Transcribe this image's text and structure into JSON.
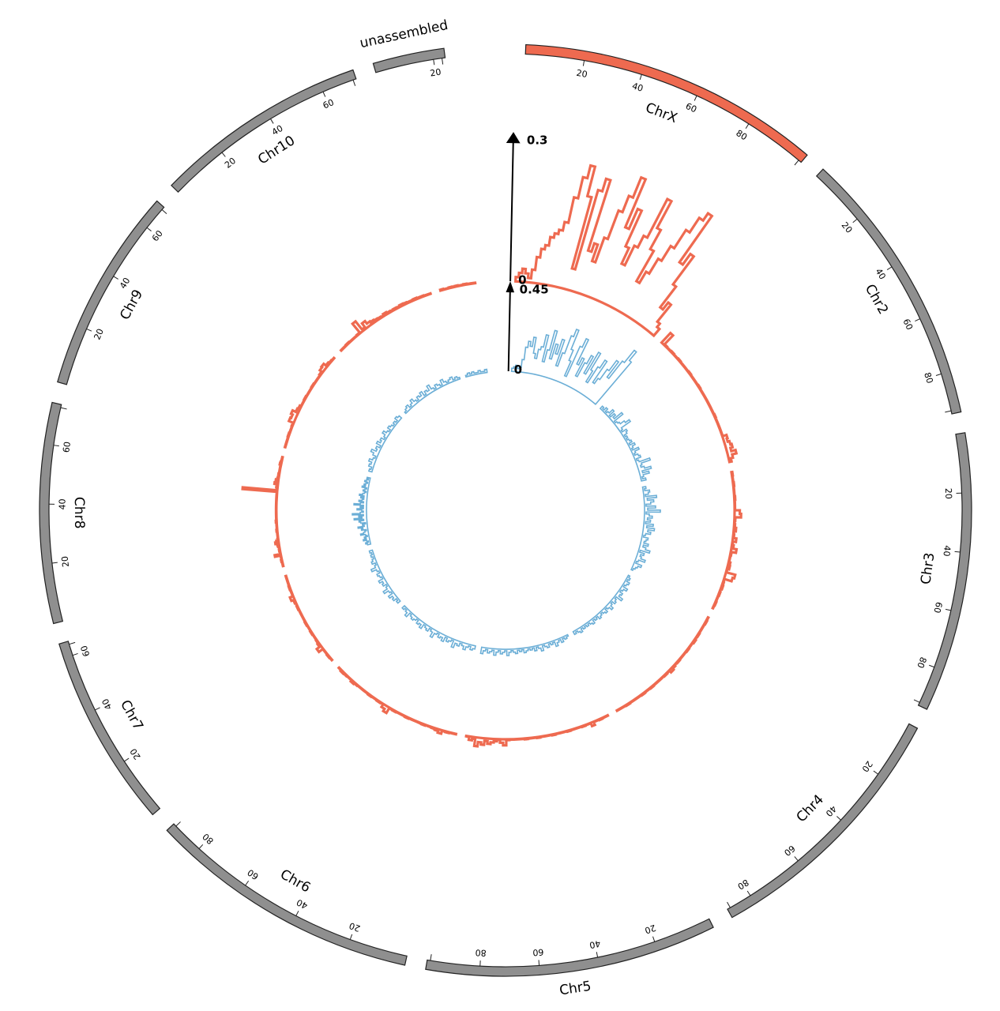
{
  "chart_data": {
    "type": "circos-histogram",
    "chromosomes": [
      {
        "name": "ChrX",
        "length": 102,
        "color": "#ee6a50",
        "ticks": [
          20,
          40,
          60,
          80
        ]
      },
      {
        "name": "Chr2",
        "length": 94,
        "color": "#8f8f8f",
        "ticks": [
          20,
          40,
          60,
          80
        ]
      },
      {
        "name": "Chr3",
        "length": 94,
        "color": "#8f8f8f",
        "ticks": [
          20,
          40,
          60,
          80
        ]
      },
      {
        "name": "Chr4",
        "length": 89,
        "color": "#8f8f8f",
        "ticks": [
          20,
          40,
          60,
          80
        ]
      },
      {
        "name": "Chr5",
        "length": 98,
        "color": "#8f8f8f",
        "ticks": [
          20,
          40,
          60,
          80
        ]
      },
      {
        "name": "Chr6",
        "length": 92,
        "color": "#8f8f8f",
        "ticks": [
          20,
          40,
          60,
          80
        ]
      },
      {
        "name": "Chr7",
        "length": 65,
        "color": "#8f8f8f",
        "ticks": [
          20,
          40,
          60
        ]
      },
      {
        "name": "Chr8",
        "length": 74,
        "color": "#8f8f8f",
        "ticks": [
          20,
          40,
          60
        ]
      },
      {
        "name": "Chr9",
        "length": 69,
        "color": "#8f8f8f",
        "ticks": [
          20,
          40,
          60
        ]
      },
      {
        "name": "Chr10",
        "length": 72,
        "color": "#8f8f8f",
        "ticks": [
          20,
          40,
          60
        ]
      },
      {
        "name": "unassembled",
        "length": 24,
        "color": "#8f8f8f",
        "ticks": [
          20
        ]
      }
    ],
    "tracks": [
      {
        "name": "",
        "color": "#ee6a50",
        "axis_max_label": "0.3",
        "axis_zero_label": "0",
        "ymax": 0.3,
        "values": {
          "ChrX": [
            0.01,
            0.02,
            0.03,
            0.02,
            0.01,
            0.03,
            0.06,
            0.08,
            0.09,
            0.11,
            0.12,
            0.13,
            0.15,
            0.21,
            0.26,
            0.29,
            0.22,
            0.05,
            0.24,
            0.27,
            0.1,
            0.12,
            0.08,
            0.14,
            0.21,
            0.25,
            0.3,
            0.18,
            0.23,
            0.14,
            0.1,
            0.15,
            0.18,
            0.28,
            0.21,
            0.16,
            0.08,
            0.11,
            0.15,
            0.19,
            0.24,
            0.28,
            0.3,
            0.17,
            0.2,
            0.12,
            0.06,
            0.08,
            0.03,
            0.02
          ],
          "Chr2": [
            0.03,
            0.002,
            0.001,
            0.001,
            0.002,
            0.001,
            0.001,
            0.002,
            0.001,
            0.001,
            0.001,
            0.001,
            0.002,
            0.001,
            0.001,
            0.001,
            0.001,
            0.002,
            0.001,
            0.001,
            0.001,
            0.001,
            0.001,
            0.001,
            0.001,
            0.001,
            0.001,
            0.002,
            0.001,
            0.001,
            0.001,
            0.001,
            0.001,
            0.001,
            0.01,
            0.008,
            0.012,
            0.015,
            0.01,
            0.02,
            0.01,
            0.005
          ],
          "Chr3": [
            0.002,
            0.001,
            0.001,
            0.002,
            0.001,
            0.001,
            0.001,
            0.002,
            0.001,
            0.001,
            0.001,
            0.012,
            0.015,
            0.002,
            0.001,
            0.002,
            0.005,
            0.001,
            0.002,
            0.008,
            0.001,
            0.004,
            0.012,
            0.002,
            0.001,
            0.001,
            0.004,
            0.005,
            0.001,
            0.022,
            0.018,
            0.001,
            0.002,
            0.003,
            0.001,
            0.002,
            0.001,
            0.001,
            0.002,
            0.001
          ],
          "Chr4": [
            0.001,
            0.002,
            0.001,
            0.001,
            0.001,
            0.002,
            0.001,
            0.003,
            0.001,
            0.001,
            0.002,
            0.001,
            0.001,
            0.001,
            0.002,
            0.001,
            0.003,
            0.006,
            0.001,
            0.002,
            0.001,
            0.001,
            0.001,
            0.001,
            0.002,
            0.001,
            0.001,
            0.002,
            0.001,
            0.001,
            0.001,
            0.001,
            0.002,
            0.001,
            0.001,
            0.001
          ],
          "Chr5": [
            0.001,
            0.001,
            0.002,
            0.001,
            0.001,
            0.008,
            0.001,
            0.001,
            0.002,
            0.001,
            0.001,
            0.001,
            0.001,
            0.002,
            0.001,
            0.001,
            0.001,
            0.001,
            0.002,
            0.001,
            0.001,
            0.001,
            0.001,
            0.002,
            0.001,
            0.001,
            0.001,
            0.002,
            0.001,
            0.001,
            0.001,
            0.001,
            0.001,
            0.002,
            0.014,
            0.008,
            0.001,
            0.005,
            0.008,
            0.012,
            0.006,
            0.015,
            0.01,
            0.02,
            0.004,
            0.008,
            0.001
          ],
          "Chr6": [
            0.001,
            0.001,
            0.002,
            0.001,
            0.008,
            0.004,
            0.002,
            0.001,
            0.001,
            0.002,
            0.001,
            0.001,
            0.001,
            0.001,
            0.002,
            0.001,
            0.001,
            0.001,
            0.002,
            0.001,
            0.014,
            0.008,
            0.001,
            0.002,
            0.001,
            0.001,
            0.002,
            0.001,
            0.001,
            0.001,
            0.001,
            0.002,
            0.004,
            0.001,
            0.001,
            0.002,
            0.003,
            0.001
          ],
          "Chr7": [
            0.001,
            0.002,
            0.001,
            0.001,
            0.012,
            0.004,
            0.002,
            0.001,
            0.001,
            0.002,
            0.001,
            0.001,
            0.002,
            0.001,
            0.001,
            0.001,
            0.001,
            0.002,
            0.001,
            0.003,
            0.008,
            0.001,
            0.001,
            0.002,
            0.001,
            0.001,
            0.001
          ],
          "Chr8": [
            0.001,
            0.001,
            0.001,
            0.002,
            0.001,
            0.001,
            0.001,
            0.014,
            0.001,
            0.001,
            0.002,
            0.001,
            0.001,
            0.003,
            0.004,
            0.008,
            0.005,
            0.002,
            0.001,
            0.001,
            0.001,
            0.001,
            0.001,
            0.002,
            0.001,
            0.001,
            0.001,
            0.001,
            0.001,
            0.002,
            0.001,
            0.001,
            0.001,
            0.001,
            0.001,
            0.001,
            0.001,
            0.001,
            0.001,
            0.001,
            0.001,
            0.001,
            0.001,
            0.001,
            0.001,
            0.001,
            0.001,
            0.001,
            0.001,
            0.08,
            0.001,
            0.002,
            0.003,
            0.001,
            0.008,
            0.005,
            0.006,
            0.003,
            0.001,
            0.002,
            0.002,
            0.001,
            0.001,
            0.001,
            0.001,
            0.001,
            0.001,
            0.003,
            0.002,
            0.001,
            0.001,
            0.001
          ],
          "Chr9": [
            0.001,
            0.001,
            0.001,
            0.002,
            0.001,
            0.001,
            0.002,
            0.012,
            0.01,
            0.014,
            0.006,
            0.004,
            0.001,
            0.001,
            0.002,
            0.001,
            0.001,
            0.001,
            0.002,
            0.001,
            0.001,
            0.001,
            0.003,
            0.008,
            0.01,
            0.004,
            0.002,
            0.001
          ],
          "Chr10": [
            0.001,
            0.001,
            0.002,
            0.001,
            0.001,
            0.001,
            0.002,
            0.028,
            0.004,
            0.015,
            0.008,
            0.006,
            0.004,
            0.003,
            0.002,
            0.005,
            0.003,
            0.002,
            0.003,
            0.002,
            0.004,
            0.003,
            0.002,
            0.002,
            0.003,
            0.002,
            0.002,
            0.001,
            0.001
          ],
          "unassembled": [
            0.002,
            0.001,
            0.001,
            0.002,
            0.001,
            0.002,
            0.001,
            0.001,
            0.002,
            0.001,
            0.001,
            0.001
          ]
        }
      },
      {
        "name": "",
        "color": "#6baed6",
        "axis_max_label": "0.45",
        "axis_zero_label": "0",
        "ymax": 0.45,
        "values": {
          "ChrX": [
            0.02,
            0.03,
            0.04,
            0.02,
            0.03,
            0.08,
            0.16,
            0.2,
            0.17,
            0.23,
            0.13,
            0.1,
            0.16,
            0.18,
            0.26,
            0.09,
            0.17,
            0.3,
            0.12,
            0.22,
            0.16,
            0.26,
            0.09,
            0.18,
            0.3,
            0.35,
            0.22,
            0.15,
            0.05,
            0.26,
            0.32,
            0.15,
            0.2,
            0.08,
            0.18,
            0.24,
            0.12,
            0.28,
            0.16,
            0.08,
            0.2,
            0.26,
            0.1,
            0.14,
            0.22,
            0.3,
            0.18,
            0.32,
            0.42,
            0.35
          ],
          "Chr2": [
            0.02,
            0.01,
            0.03,
            0.01,
            0.02,
            0.05,
            0.01,
            0.04,
            0.02,
            0.08,
            0.01,
            0.02,
            0.03,
            0.06,
            0.09,
            0.02,
            0.01,
            0.04,
            0.03,
            0.01,
            0.02,
            0.01,
            0.02,
            0.03,
            0.01,
            0.04,
            0.02,
            0.01,
            0.05,
            0.02,
            0.01,
            0.03,
            0.04,
            0.01,
            0.02,
            0.09,
            0.03,
            0.02,
            0.04,
            0.08,
            0.02,
            0.06,
            0.02,
            0.01,
            0.03
          ],
          "Chr3": [
            0.02,
            0.01,
            0.04,
            0.03,
            0.01,
            0.08,
            0.02,
            0.06,
            0.04,
            0.01,
            0.07,
            0.02,
            0.1,
            0.01,
            0.03,
            0.05,
            0.02,
            0.04,
            0.01,
            0.06,
            0.02,
            0.07,
            0.03,
            0.05,
            0.02,
            0.01,
            0.04,
            0.03,
            0.02,
            0.05,
            0.02,
            0.04,
            0.07,
            0.01,
            0.04,
            0.02,
            0.03,
            0.06,
            0.02,
            0.01,
            0.05,
            0.03,
            0.02,
            0.01
          ],
          "Chr4": [
            0.01,
            0.02,
            0.01,
            0.03,
            0.02,
            0.01,
            0.04,
            0.02,
            0.01,
            0.03,
            0.02,
            0.05,
            0.01,
            0.02,
            0.03,
            0.01,
            0.02,
            0.04,
            0.02,
            0.01,
            0.03,
            0.02,
            0.01,
            0.02,
            0.03,
            0.01,
            0.02,
            0.01,
            0.03,
            0.02,
            0.01,
            0.02,
            0.01,
            0.02,
            0.01,
            0.03,
            0.02,
            0.01,
            0.02
          ],
          "Chr5": [
            0.01,
            0.02,
            0.01,
            0.03,
            0.01,
            0.02,
            0.04,
            0.01,
            0.02,
            0.01,
            0.03,
            0.02,
            0.01,
            0.04,
            0.02,
            0.01,
            0.03,
            0.01,
            0.02,
            0.01,
            0.02,
            0.03,
            0.01,
            0.02,
            0.01,
            0.03,
            0.02,
            0.01,
            0.02,
            0.04,
            0.01,
            0.02,
            0.03,
            0.01,
            0.02,
            0.04,
            0.01,
            0.02,
            0.03,
            0.01,
            0.02,
            0.04
          ],
          "Chr6": [
            0.02,
            0.03,
            0.01,
            0.02,
            0.04,
            0.02,
            0.01,
            0.03,
            0.02,
            0.05,
            0.01,
            0.02,
            0.03,
            0.01,
            0.04,
            0.02,
            0.03,
            0.01,
            0.02,
            0.05,
            0.02,
            0.01,
            0.03,
            0.02,
            0.01,
            0.04,
            0.02,
            0.03,
            0.01,
            0.02,
            0.03,
            0.02,
            0.01,
            0.04,
            0.02,
            0.01,
            0.02
          ],
          "Chr7": [
            0.02,
            0.01,
            0.03,
            0.02,
            0.04,
            0.01,
            0.02,
            0.05,
            0.02,
            0.01,
            0.03,
            0.02,
            0.04,
            0.01,
            0.02,
            0.03,
            0.01,
            0.02,
            0.05,
            0.02,
            0.01,
            0.03,
            0.02,
            0.01,
            0.02,
            0.01,
            0.02
          ],
          "Chr8": [
            0.02,
            0.03,
            0.01,
            0.02,
            0.04,
            0.02,
            0.03,
            0.01,
            0.02,
            0.05,
            0.03,
            0.02,
            0.01,
            0.04,
            0.03,
            0.06,
            0.02,
            0.03,
            0.01,
            0.04,
            0.05,
            0.02,
            0.08,
            0.03,
            0.05,
            0.02,
            0.09,
            0.04,
            0.02,
            0.03,
            0.06,
            0.02,
            0.04,
            0.02,
            0.08,
            0.04,
            0.02,
            0.05,
            0.03,
            0.02,
            0.04,
            0.02,
            0.05,
            0.03,
            0.02,
            0.01,
            0.03,
            0.02,
            0.01,
            0.04,
            0.02,
            0.03,
            0.02,
            0.01,
            0.03,
            0.02,
            0.01,
            0.02
          ],
          "Chr9": [
            0.02,
            0.01,
            0.03,
            0.02,
            0.04,
            0.02,
            0.01,
            0.03,
            0.05,
            0.02,
            0.03,
            0.01,
            0.04,
            0.02,
            0.03,
            0.01,
            0.02,
            0.04,
            0.02,
            0.01,
            0.03,
            0.02,
            0.01,
            0.02,
            0.01,
            0.03,
            0.02
          ],
          "Chr10": [
            0.01,
            0.02,
            0.03,
            0.01,
            0.02,
            0.04,
            0.02,
            0.01,
            0.03,
            0.02,
            0.04,
            0.01,
            0.03,
            0.02,
            0.05,
            0.02,
            0.01,
            0.03,
            0.02,
            0.01,
            0.04,
            0.02,
            0.01,
            0.02,
            0.03,
            0.01,
            0.02,
            0.01
          ],
          "unassembled": [
            0.01,
            0.02,
            0.01,
            0.02,
            0.01,
            0.01,
            0.02,
            0.01,
            0.01,
            0.02
          ]
        }
      }
    ]
  }
}
